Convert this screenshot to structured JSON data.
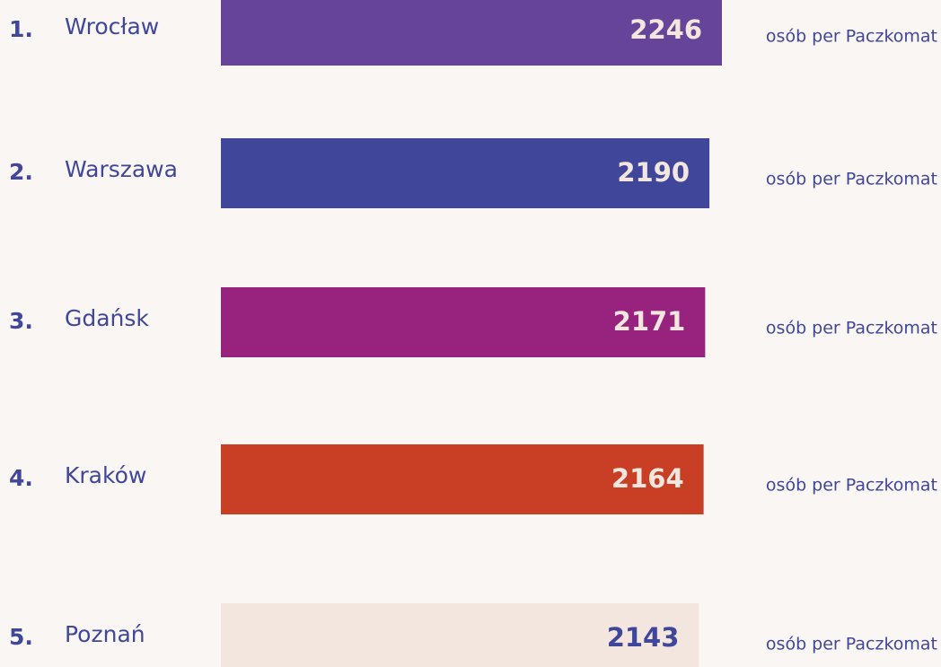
{
  "chart_data": {
    "type": "bar",
    "ranks": [
      "1.",
      "2.",
      "3.",
      "4.",
      "5."
    ],
    "categories": [
      "Wrocław",
      "Warszawa",
      "Gdańsk",
      "Kraków",
      "Poznań"
    ],
    "values": [
      2246,
      2190,
      2171,
      2164,
      2143
    ],
    "colors": [
      "#65449a",
      "#40479b",
      "#98237f",
      "#c83f26",
      "#f3e6de"
    ],
    "label_colors": [
      "#f3e6de",
      "#f3e6de",
      "#f3e6de",
      "#f3e6de",
      "#40479b"
    ],
    "unit_label": "osób per Paczkomat"
  }
}
